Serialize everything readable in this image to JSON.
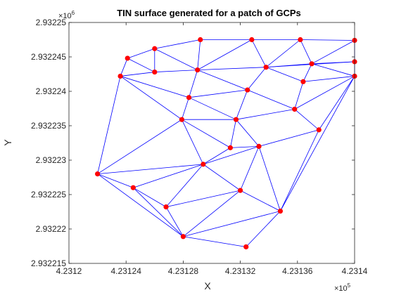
{
  "chart_data": {
    "type": "scatter",
    "title": "TIN surface generated for a patch of GCPs",
    "xlabel": "X",
    "ylabel": "Y",
    "x_multiplier_base": "×10",
    "x_multiplier_exp": "5",
    "y_multiplier_base": "×10",
    "y_multiplier_exp": "6",
    "xlim": [
      4.2312,
      4.2314
    ],
    "ylim": [
      2.932215,
      2.93225
    ],
    "xticks": [
      4.2312,
      4.23124,
      4.23128,
      4.23132,
      4.23136,
      4.2314
    ],
    "xtick_labels": [
      "4.2312",
      "4.23124",
      "4.23128",
      "4.23132",
      "4.23136",
      "4.2314"
    ],
    "yticks": [
      2.932215,
      2.93222,
      2.932225,
      2.93223,
      2.932235,
      2.93224,
      2.932245,
      2.93225
    ],
    "ytick_labels": [
      "2.932215",
      "2.93222",
      "2.932225",
      "2.93223",
      "2.932235",
      "2.93224",
      "2.932245",
      "2.93225"
    ],
    "edge_color": "#0000ff",
    "point_color": "#ff0000",
    "points": [
      {
        "x": 4.231241,
        "y": 2.9322448
      },
      {
        "x": 4.23126,
        "y": 2.9322462
      },
      {
        "x": 4.231292,
        "y": 2.9322475
      },
      {
        "x": 4.231328,
        "y": 2.9322475
      },
      {
        "x": 4.231362,
        "y": 2.9322475
      },
      {
        "x": 4.2314,
        "y": 2.9322474
      },
      {
        "x": 4.2314,
        "y": 2.9322443
      },
      {
        "x": 4.23137,
        "y": 2.932244
      },
      {
        "x": 4.231338,
        "y": 2.9322435
      },
      {
        "x": 4.23129,
        "y": 2.9322431
      },
      {
        "x": 4.23126,
        "y": 2.9322428
      },
      {
        "x": 4.231236,
        "y": 2.9322422
      },
      {
        "x": 4.2314,
        "y": 2.9322422
      },
      {
        "x": 4.231364,
        "y": 2.9322414
      },
      {
        "x": 4.231325,
        "y": 2.9322402
      },
      {
        "x": 4.231284,
        "y": 2.9322391
      },
      {
        "x": 4.231358,
        "y": 2.9322374
      },
      {
        "x": 4.231279,
        "y": 2.9322359
      },
      {
        "x": 4.231317,
        "y": 2.9322359
      },
      {
        "x": 4.231375,
        "y": 2.9322344
      },
      {
        "x": 4.231313,
        "y": 2.9322318
      },
      {
        "x": 4.231333,
        "y": 2.932232
      },
      {
        "x": 4.231294,
        "y": 2.9322294
      },
      {
        "x": 4.23122,
        "y": 2.932228
      },
      {
        "x": 4.231245,
        "y": 2.932226
      },
      {
        "x": 4.23132,
        "y": 2.9322256
      },
      {
        "x": 4.231268,
        "y": 2.9322232
      },
      {
        "x": 4.231348,
        "y": 2.9322226
      },
      {
        "x": 4.23128,
        "y": 2.9322189
      },
      {
        "x": 4.231324,
        "y": 2.9322174
      }
    ],
    "edges": [
      [
        0,
        1
      ],
      [
        1,
        2
      ],
      [
        2,
        3
      ],
      [
        3,
        4
      ],
      [
        4,
        5
      ],
      [
        5,
        6
      ],
      [
        6,
        12
      ],
      [
        0,
        11
      ],
      [
        0,
        10
      ],
      [
        1,
        10
      ],
      [
        1,
        9
      ],
      [
        2,
        9
      ],
      [
        3,
        9
      ],
      [
        3,
        8
      ],
      [
        4,
        8
      ],
      [
        4,
        7
      ],
      [
        5,
        7
      ],
      [
        6,
        7
      ],
      [
        10,
        11
      ],
      [
        9,
        10
      ],
      [
        8,
        9
      ],
      [
        7,
        8
      ],
      [
        6,
        8
      ],
      [
        12,
        7
      ],
      [
        11,
        15
      ],
      [
        9,
        15
      ],
      [
        9,
        14
      ],
      [
        8,
        14
      ],
      [
        8,
        13
      ],
      [
        7,
        13
      ],
      [
        12,
        13
      ],
      [
        13,
        16
      ],
      [
        14,
        16
      ],
      [
        14,
        15
      ],
      [
        14,
        18
      ],
      [
        15,
        18
      ],
      [
        15,
        17
      ],
      [
        11,
        17
      ],
      [
        16,
        18
      ],
      [
        16,
        19
      ],
      [
        12,
        19
      ],
      [
        12,
        16
      ],
      [
        17,
        18
      ],
      [
        18,
        20
      ],
      [
        18,
        21
      ],
      [
        17,
        20
      ],
      [
        20,
        21
      ],
      [
        19,
        21
      ],
      [
        11,
        23
      ],
      [
        17,
        23
      ],
      [
        17,
        22
      ],
      [
        20,
        22
      ],
      [
        21,
        22
      ],
      [
        22,
        23
      ],
      [
        23,
        24
      ],
      [
        22,
        24
      ],
      [
        22,
        25
      ],
      [
        22,
        26
      ],
      [
        24,
        26
      ],
      [
        21,
        25
      ],
      [
        25,
        26
      ],
      [
        21,
        27
      ],
      [
        19,
        27
      ],
      [
        12,
        27
      ],
      [
        25,
        27
      ],
      [
        24,
        28
      ],
      [
        23,
        28
      ],
      [
        26,
        28
      ],
      [
        25,
        28
      ],
      [
        27,
        28
      ],
      [
        28,
        29
      ],
      [
        27,
        29
      ]
    ]
  }
}
